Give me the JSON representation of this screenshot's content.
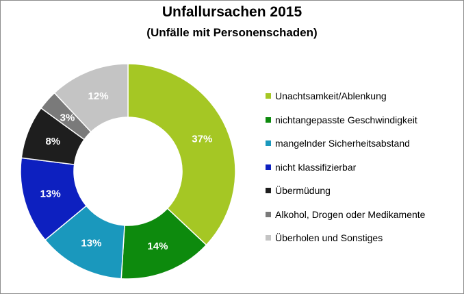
{
  "chart_data": {
    "type": "pie",
    "title": "Unfallursachen 2015",
    "subtitle": "(Unfälle mit Personenschaden)",
    "unit": "%",
    "legend_position": "right",
    "categories": [
      "Unachtsamkeit/Ablenkung",
      "nichtangepasste Geschwindigkeit",
      "mangelnder Sicherheitsabstand",
      "nicht klassifizierbar",
      "Übermüdung",
      "Alkohol, Drogen oder Medikamente",
      "Überholen und Sonstiges"
    ],
    "values": [
      37,
      14,
      13,
      13,
      8,
      3,
      12
    ],
    "data_labels": [
      "37%",
      "14%",
      "13%",
      "13%",
      "8%",
      "3%",
      "12%"
    ],
    "colors": [
      "#a5c724",
      "#0d8a0d",
      "#1a98bd",
      "#0d20c0",
      "#1e1e1e",
      "#7a7a7a",
      "#c4c4c4"
    ],
    "label_colors": [
      "#ffffff",
      "#ffffff",
      "#ffffff",
      "#ffffff",
      "#ffffff",
      "#ffffff",
      "#ffffff"
    ]
  }
}
